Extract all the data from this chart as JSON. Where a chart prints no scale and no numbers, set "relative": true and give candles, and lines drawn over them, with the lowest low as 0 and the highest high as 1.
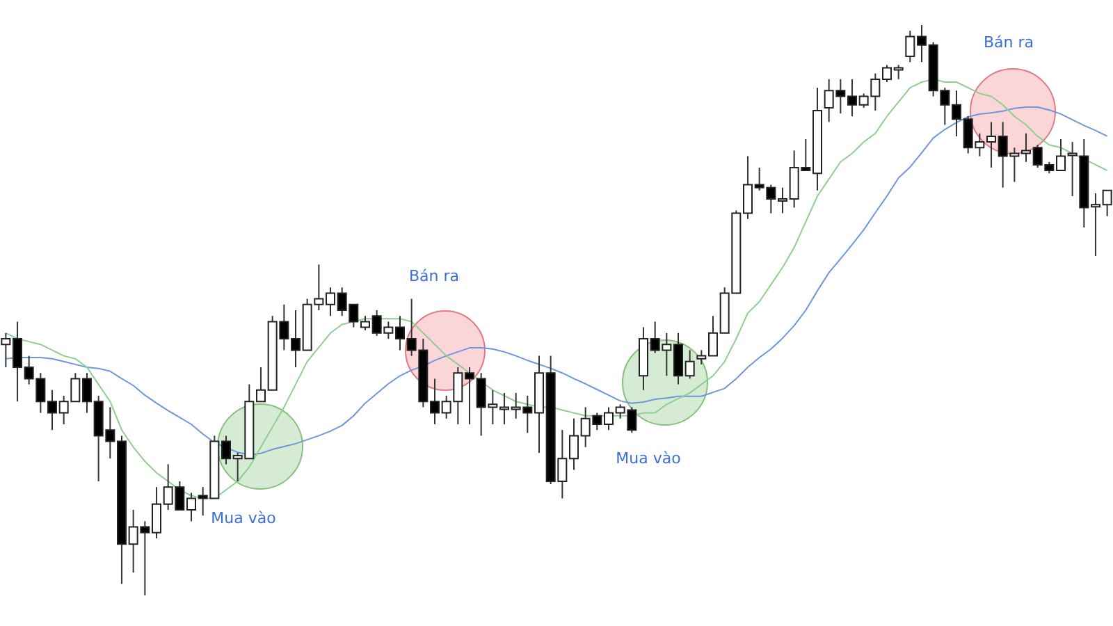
{
  "chart_data": {
    "type": "candlestick",
    "relative": true,
    "annotations": [
      "Bán ra",
      "Mua vào",
      "Mua vào",
      "Bán ra"
    ],
    "categories": [
      null,
      null,
      null,
      null,
      null,
      null,
      null,
      null,
      null,
      null,
      null,
      null,
      null,
      null,
      null,
      null,
      null,
      null,
      null,
      null,
      null,
      null,
      null,
      null,
      null,
      null,
      null,
      null,
      null,
      null,
      null,
      null,
      null,
      null,
      null,
      null,
      null,
      null,
      null,
      null,
      null,
      null,
      null,
      null,
      null,
      null,
      null,
      null,
      null,
      null,
      null,
      null,
      null,
      null,
      null,
      null,
      null,
      null,
      null,
      null,
      null,
      null,
      null,
      null,
      null,
      null,
      null,
      null,
      null,
      null,
      null,
      null,
      null,
      null,
      null,
      null,
      null,
      null,
      null,
      null,
      null,
      null,
      null,
      null,
      null,
      null,
      null,
      null,
      null,
      null,
      null,
      null,
      null,
      null,
      null,
      null
    ],
    "ohlc": [
      [
        0.44,
        0.46,
        0.4,
        0.45
      ],
      [
        0.45,
        0.48,
        0.34,
        0.4
      ],
      [
        0.4,
        0.42,
        0.37,
        0.38
      ],
      [
        0.38,
        0.39,
        0.32,
        0.34
      ],
      [
        0.34,
        0.36,
        0.29,
        0.32
      ],
      [
        0.32,
        0.35,
        0.3,
        0.34
      ],
      [
        0.34,
        0.39,
        0.34,
        0.38
      ],
      [
        0.38,
        0.39,
        0.32,
        0.34
      ],
      [
        0.34,
        0.35,
        0.2,
        0.28
      ],
      [
        0.29,
        0.33,
        0.24,
        0.27
      ],
      [
        0.27,
        0.28,
        0.02,
        0.09
      ],
      [
        0.09,
        0.15,
        0.04,
        0.12
      ],
      [
        0.12,
        0.13,
        0,
        0.11
      ],
      [
        0.11,
        0.19,
        0.1,
        0.16
      ],
      [
        0.16,
        0.23,
        0.15,
        0.19
      ],
      [
        0.19,
        0.2,
        0.15,
        0.15
      ],
      [
        0.15,
        0.18,
        0.13,
        0.17
      ],
      [
        0.175,
        0.19,
        0.14,
        0.17
      ],
      [
        0.17,
        0.28,
        0.17,
        0.27
      ],
      [
        0.27,
        0.28,
        0.23,
        0.24
      ],
      [
        0.24,
        0.25,
        0.2,
        0.245
      ],
      [
        0.24,
        0.37,
        0.24,
        0.34
      ],
      [
        0.34,
        0.4,
        0.34,
        0.36
      ],
      [
        0.36,
        0.49,
        0.36,
        0.48
      ],
      [
        0.48,
        0.51,
        0.43,
        0.45
      ],
      [
        0.45,
        0.5,
        0.4,
        0.43
      ],
      [
        0.43,
        0.52,
        0.43,
        0.51
      ],
      [
        0.51,
        0.58,
        0.5,
        0.52
      ],
      [
        0.51,
        0.54,
        0.49,
        0.53
      ],
      [
        0.53,
        0.54,
        0.49,
        0.5
      ],
      [
        0.51,
        0.51,
        0.47,
        0.48
      ],
      [
        0.47,
        0.49,
        0.465,
        0.48
      ],
      [
        0.49,
        0.5,
        0.455,
        0.46
      ],
      [
        0.46,
        0.48,
        0.45,
        0.47
      ],
      [
        0.47,
        0.49,
        0.43,
        0.45
      ],
      [
        0.45,
        0.52,
        0.42,
        0.43
      ],
      [
        0.43,
        0.45,
        0.33,
        0.34
      ],
      [
        0.34,
        0.38,
        0.3,
        0.32
      ],
      [
        0.32,
        0.35,
        0.31,
        0.34
      ],
      [
        0.34,
        0.4,
        0.3,
        0.39
      ],
      [
        0.39,
        0.4,
        0.3,
        0.38
      ],
      [
        0.38,
        0.39,
        0.28,
        0.33
      ],
      [
        0.33,
        0.36,
        0.3,
        0.335
      ],
      [
        0.33,
        0.355,
        0.3,
        0.33
      ],
      [
        0.33,
        0.355,
        0.31,
        0.33
      ],
      [
        0.33,
        0.35,
        0.285,
        0.32
      ],
      [
        0.32,
        0.42,
        0.25,
        0.39
      ],
      [
        0.39,
        0.42,
        0.195,
        0.2
      ],
      [
        0.2,
        0.29,
        0.17,
        0.24
      ],
      [
        0.24,
        0.31,
        0.22,
        0.28
      ],
      [
        0.28,
        0.33,
        0.26,
        0.31
      ],
      [
        0.315,
        0.32,
        0.29,
        0.3
      ],
      [
        0.3,
        0.33,
        0.29,
        0.32
      ],
      [
        0.32,
        0.335,
        0.31,
        0.33
      ],
      [
        0.325,
        0.33,
        0.285,
        0.29
      ],
      [
        0.385,
        0.47,
        0.36,
        0.45
      ],
      [
        0.45,
        0.48,
        0.425,
        0.43
      ],
      [
        0.43,
        0.46,
        0.385,
        0.44
      ],
      [
        0.44,
        0.46,
        0.37,
        0.385
      ],
      [
        0.385,
        0.43,
        0.38,
        0.41
      ],
      [
        0.415,
        0.43,
        0.405,
        0.42
      ],
      [
        0.42,
        0.49,
        0.42,
        0.46
      ],
      [
        0.46,
        0.54,
        0.46,
        0.53
      ],
      [
        0.53,
        0.675,
        0.53,
        0.67
      ],
      [
        0.67,
        0.77,
        0.66,
        0.72
      ],
      [
        0.72,
        0.75,
        0.71,
        0.715
      ],
      [
        0.715,
        0.72,
        0.67,
        0.695
      ],
      [
        0.695,
        0.715,
        0.67,
        0.695
      ],
      [
        0.695,
        0.78,
        0.68,
        0.75
      ],
      [
        0.75,
        0.8,
        0.745,
        0.745
      ],
      [
        0.74,
        0.89,
        0.71,
        0.85
      ],
      [
        0.855,
        0.905,
        0.83,
        0.885
      ],
      [
        0.885,
        0.905,
        0.845,
        0.875
      ],
      [
        0.875,
        0.905,
        0.84,
        0.86
      ],
      [
        0.86,
        0.88,
        0.855,
        0.875
      ],
      [
        0.875,
        0.915,
        0.85,
        0.905
      ],
      [
        0.905,
        0.93,
        0.9,
        0.925
      ],
      [
        0.925,
        0.93,
        0.905,
        0.925
      ],
      [
        0.945,
        0.99,
        0.935,
        0.98
      ],
      [
        0.98,
        1,
        0.935,
        0.965
      ],
      [
        0.965,
        0.97,
        0.875,
        0.885
      ],
      [
        0.885,
        0.89,
        0.825,
        0.86
      ],
      [
        0.86,
        0.885,
        0.805,
        0.835
      ],
      [
        0.835,
        0.84,
        0.775,
        0.785
      ],
      [
        0.785,
        0.81,
        0.77,
        0.795
      ],
      [
        0.795,
        0.83,
        0.75,
        0.805
      ],
      [
        0.805,
        0.83,
        0.715,
        0.77
      ],
      [
        0.77,
        0.785,
        0.725,
        0.775
      ],
      [
        0.775,
        0.81,
        0.76,
        0.78
      ],
      [
        0.785,
        0.79,
        0.75,
        0.755
      ],
      [
        0.755,
        0.76,
        0.74,
        0.745
      ],
      [
        0.745,
        0.8,
        0.745,
        0.77
      ],
      [
        0.775,
        0.795,
        0.7,
        0.775
      ],
      [
        0.77,
        0.8,
        0.645,
        0.68
      ],
      [
        0.685,
        0.705,
        0.595,
        0.685
      ],
      [
        0.685,
        0.71,
        0.665,
        0.71
      ]
    ],
    "series": [
      {
        "type": "line",
        "color": "#8fce8f",
        "values": [
          0.46,
          0.45,
          0.445,
          0.44,
          0.43,
          0.42,
          0.415,
          0.4,
          0.37,
          0.34,
          0.29,
          0.26,
          0.235,
          0.215,
          0.2,
          0.185,
          0.175,
          0.17,
          0.17,
          0.185,
          0.2,
          0.225,
          0.26,
          0.295,
          0.33,
          0.37,
          0.41,
          0.435,
          0.46,
          0.475,
          0.48,
          0.485,
          0.485,
          0.485,
          0.485,
          0.48,
          0.46,
          0.44,
          0.42,
          0.405,
          0.39,
          0.375,
          0.36,
          0.35,
          0.34,
          0.335,
          0.33,
          0.33,
          0.325,
          0.32,
          0.315,
          0.315,
          0.315,
          0.315,
          0.315,
          0.32,
          0.32,
          0.335,
          0.345,
          0.355,
          0.37,
          0.385,
          0.41,
          0.45,
          0.495,
          0.515,
          0.545,
          0.575,
          0.61,
          0.655,
          0.7,
          0.73,
          0.76,
          0.775,
          0.795,
          0.81,
          0.84,
          0.865,
          0.89,
          0.9,
          0.905,
          0.9,
          0.9,
          0.89,
          0.88,
          0.875,
          0.86,
          0.84,
          0.825,
          0.805,
          0.79,
          0.785,
          0.775,
          0.765,
          0.755,
          0.745
        ]
      },
      {
        "type": "line",
        "color": "#6f95dc",
        "values": [
          0.415,
          0.417,
          0.417,
          0.417,
          0.415,
          0.41,
          0.405,
          0.4,
          0.398,
          0.393,
          0.38,
          0.368,
          0.351,
          0.337,
          0.324,
          0.312,
          0.3,
          0.283,
          0.268,
          0.259,
          0.251,
          0.246,
          0.249,
          0.256,
          0.261,
          0.266,
          0.273,
          0.28,
          0.288,
          0.298,
          0.315,
          0.337,
          0.354,
          0.371,
          0.385,
          0.395,
          0.402,
          0.412,
          0.42,
          0.427,
          0.434,
          0.434,
          0.432,
          0.427,
          0.42,
          0.412,
          0.405,
          0.398,
          0.39,
          0.38,
          0.371,
          0.361,
          0.351,
          0.341,
          0.337,
          0.339,
          0.344,
          0.346,
          0.349,
          0.349,
          0.349,
          0.356,
          0.363,
          0.38,
          0.4,
          0.417,
          0.432,
          0.451,
          0.473,
          0.5,
          0.534,
          0.566,
          0.59,
          0.615,
          0.641,
          0.671,
          0.7,
          0.732,
          0.751,
          0.776,
          0.802,
          0.817,
          0.829,
          0.839,
          0.844,
          0.846,
          0.849,
          0.854,
          0.856,
          0.856,
          0.851,
          0.844,
          0.834,
          0.824,
          0.815,
          0.805
        ]
      }
    ]
  }
}
